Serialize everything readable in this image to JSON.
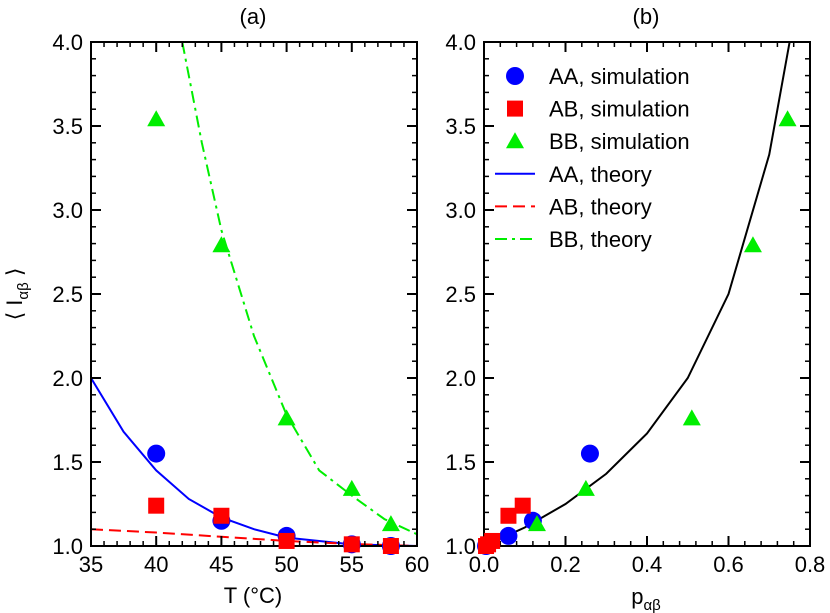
{
  "chart_data": [
    {
      "type": "scatter+line",
      "title": "(a)",
      "xlabel": "T (°C)",
      "ylabel_parts": {
        "prefix": "⟨ I",
        "subscript": "αβ",
        "suffix": " ⟩"
      },
      "xlim": [
        35,
        60
      ],
      "ylim": [
        1.0,
        4.0
      ],
      "xticks": [
        35,
        40,
        45,
        50,
        55,
        60
      ],
      "xtick_labels": [
        "35",
        "40",
        "45",
        "50",
        "55",
        "60"
      ],
      "yticks": [
        1.0,
        1.5,
        2.0,
        2.5,
        3.0,
        3.5,
        4.0
      ],
      "ytick_labels": [
        "1.0",
        "1.5",
        "2.0",
        "2.5",
        "3.0",
        "3.5",
        "4.0"
      ],
      "series": [
        {
          "name": "AA, simulation",
          "kind": "scatter",
          "marker": "circle",
          "color": "#0000ff",
          "points": [
            [
              40,
              1.55
            ],
            [
              45,
              1.15
            ],
            [
              50,
              1.06
            ],
            [
              55,
              1.01
            ],
            [
              58,
              1.0
            ]
          ]
        },
        {
          "name": "AB, simulation",
          "kind": "scatter",
          "marker": "square",
          "color": "#ff0000",
          "points": [
            [
              40,
              1.24
            ],
            [
              45,
              1.18
            ],
            [
              50,
              1.03
            ],
            [
              55,
              1.01
            ],
            [
              58,
              1.0
            ]
          ]
        },
        {
          "name": "BB, simulation",
          "kind": "scatter",
          "marker": "triangle",
          "color": "#00ee00",
          "points": [
            [
              40,
              3.54
            ],
            [
              45,
              2.79
            ],
            [
              50,
              1.76
            ],
            [
              55,
              1.34
            ],
            [
              58,
              1.13
            ]
          ]
        },
        {
          "name": "AA, theory",
          "kind": "line",
          "dash": "solid",
          "color": "#0000ff",
          "points": [
            [
              35,
              2.0
            ],
            [
              37.5,
              1.68
            ],
            [
              40,
              1.45
            ],
            [
              42.5,
              1.28
            ],
            [
              45,
              1.17
            ],
            [
              47.5,
              1.1
            ],
            [
              50,
              1.05
            ],
            [
              52.5,
              1.03
            ],
            [
              55,
              1.01
            ],
            [
              57.5,
              1.005
            ],
            [
              60,
              1.0
            ]
          ]
        },
        {
          "name": "AB, theory",
          "kind": "line",
          "dash": "dashed",
          "color": "#ff0000",
          "points": [
            [
              35,
              1.1
            ],
            [
              40,
              1.08
            ],
            [
              45,
              1.055
            ],
            [
              50,
              1.03
            ],
            [
              55,
              1.012
            ],
            [
              60,
              1.0
            ]
          ]
        },
        {
          "name": "BB, theory",
          "kind": "line",
          "dash": "dashdot",
          "color": "#00ee00",
          "points": [
            [
              42,
              4.0
            ],
            [
              43.5,
              3.4
            ],
            [
              45,
              2.88
            ],
            [
              47.5,
              2.25
            ],
            [
              50,
              1.78
            ],
            [
              52.5,
              1.45
            ],
            [
              55,
              1.3
            ],
            [
              57.5,
              1.16
            ],
            [
              60,
              1.07
            ]
          ]
        }
      ]
    },
    {
      "type": "scatter+line",
      "title": "(b)",
      "xlabel_parts": {
        "prefix": "p",
        "subscript": "αβ"
      },
      "xlim": [
        0,
        0.8
      ],
      "ylim": [
        1.0,
        4.0
      ],
      "xticks": [
        0,
        0.2,
        0.4,
        0.6,
        0.8
      ],
      "xtick_labels": [
        "0.0",
        "0.2",
        "0.4",
        "0.6",
        "0.8"
      ],
      "yticks": [
        1.0,
        1.5,
        2.0,
        2.5,
        3.0,
        3.5,
        4.0
      ],
      "ytick_labels": [
        "1.0",
        "1.5",
        "2.0",
        "2.5",
        "3.0",
        "3.5",
        "4.0"
      ],
      "legend": {
        "position": "top-left",
        "entries": [
          "AA, simulation",
          "AB, simulation",
          "BB, simulation",
          "AA, theory",
          "AB, theory",
          "BB, theory"
        ]
      },
      "series": [
        {
          "name": "AA, simulation",
          "kind": "scatter",
          "marker": "circle",
          "color": "#0000ff",
          "points": [
            [
              0.26,
              1.55
            ],
            [
              0.12,
              1.15
            ],
            [
              0.06,
              1.06
            ],
            [
              0.01,
              1.01
            ],
            [
              0.005,
              1.0
            ]
          ]
        },
        {
          "name": "AB, simulation",
          "kind": "scatter",
          "marker": "square",
          "color": "#ff0000",
          "points": [
            [
              0.095,
              1.24
            ],
            [
              0.06,
              1.18
            ],
            [
              0.02,
              1.03
            ],
            [
              0.01,
              1.01
            ],
            [
              0.005,
              1.0
            ]
          ]
        },
        {
          "name": "BB, simulation",
          "kind": "scatter",
          "marker": "triangle",
          "color": "#00ee00",
          "points": [
            [
              0.745,
              3.54
            ],
            [
              0.66,
              2.79
            ],
            [
              0.51,
              1.76
            ],
            [
              0.25,
              1.34
            ],
            [
              0.13,
              1.13
            ]
          ]
        },
        {
          "name": "AA, theory",
          "kind": "line",
          "dash": "solid",
          "color": "#0000ff",
          "points": []
        },
        {
          "name": "AB, theory",
          "kind": "line",
          "dash": "dashed",
          "color": "#ff0000",
          "points": []
        },
        {
          "name": "BB, theory",
          "kind": "line",
          "dash": "dashdot",
          "color": "#00ee00",
          "points": []
        },
        {
          "name": "theory (all pairs)",
          "kind": "line",
          "dash": "solid",
          "color": "#000000",
          "points": [
            [
              0.0,
              1.0
            ],
            [
              0.1,
              1.11
            ],
            [
              0.2,
              1.25
            ],
            [
              0.3,
              1.43
            ],
            [
              0.4,
              1.67
            ],
            [
              0.5,
              2.0
            ],
            [
              0.6,
              2.5
            ],
            [
              0.7,
              3.33
            ],
            [
              0.75,
              4.0
            ]
          ]
        }
      ]
    }
  ]
}
